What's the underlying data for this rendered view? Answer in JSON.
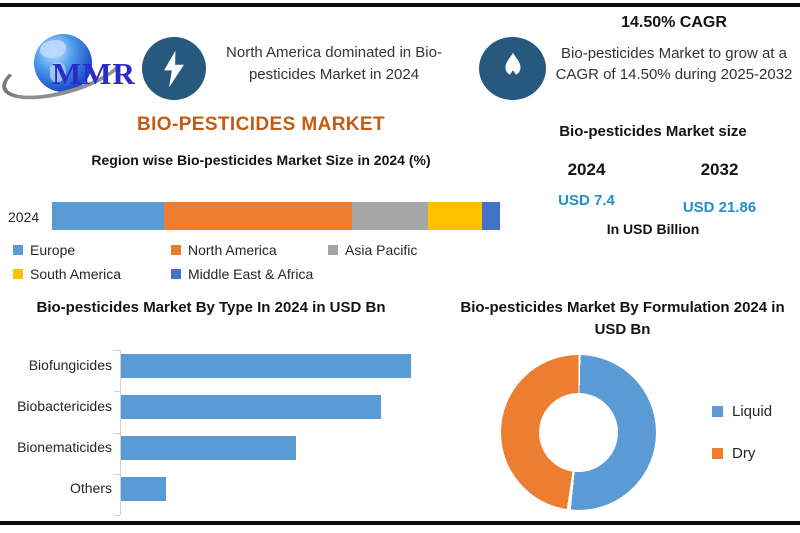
{
  "header": {
    "logo_text": "MMR",
    "dominance_note": "North America dominated in Bio-pesticides Market in 2024",
    "cagr_title": "14.50% CAGR",
    "cagr_text": "Bio-pesticides Market to grow at a CAGR of 14.50% during 2025-2032"
  },
  "main_title": "BIO-PESTICIDES MARKET",
  "market_size_panel": {
    "title": "Bio-pesticides Market size",
    "year_start": "2024",
    "year_end": "2032",
    "value_start": "USD 7.4",
    "value_end": "USD 21.86",
    "unit": "In USD Billion"
  },
  "colors": {
    "accent_orange": "#C55A11",
    "value_blue": "#1E8FD0",
    "badge_blue": "#27597F",
    "series_blue": "#5B9BD5",
    "series_orange": "#ED7D31",
    "series_gray": "#A5A5A5",
    "series_yellow": "#FFC000",
    "series_darkblue": "#4472C4"
  },
  "chart_data": [
    {
      "id": "region-share",
      "type": "bar",
      "subtype": "stacked-horizontal",
      "title": "Region wise Bio-pesticides Market Size in 2024 (%)",
      "categories": [
        "2024"
      ],
      "series": [
        {
          "name": "Europe",
          "color": "#5B9BD5",
          "values": [
            25
          ]
        },
        {
          "name": "North America",
          "color": "#ED7D31",
          "values": [
            42
          ]
        },
        {
          "name": "Asia Pacific",
          "color": "#A5A5A5",
          "values": [
            17
          ]
        },
        {
          "name": "South America",
          "color": "#FFC000",
          "values": [
            12
          ]
        },
        {
          "name": "Middle East & Africa",
          "color": "#4472C4",
          "values": [
            4
          ]
        }
      ],
      "xlim": [
        0,
        100
      ],
      "unit": "%",
      "legend_position": "bottom",
      "grid": false
    },
    {
      "id": "by-type",
      "type": "bar",
      "subtype": "horizontal",
      "title": "Bio-pesticides Market By Type In 2024 in USD Bn",
      "categories": [
        "Biofungicides",
        "Biobactericides",
        "Bionematicides",
        "Others"
      ],
      "values": [
        2.9,
        2.6,
        1.75,
        0.45
      ],
      "color": "#5B9BD5",
      "xlim": [
        0,
        3
      ],
      "unit": "USD Bn",
      "grid": false,
      "legend_position": "none"
    },
    {
      "id": "by-formulation",
      "type": "pie",
      "subtype": "donut",
      "title": "Bio-pesticides Market By Formulation 2024 in USD Bn",
      "slices": [
        {
          "label": "Liquid",
          "value": 52,
          "color": "#5B9BD5"
        },
        {
          "label": "Dry",
          "value": 48,
          "color": "#ED7D31"
        }
      ],
      "unit": "% of market",
      "legend_position": "right"
    }
  ]
}
